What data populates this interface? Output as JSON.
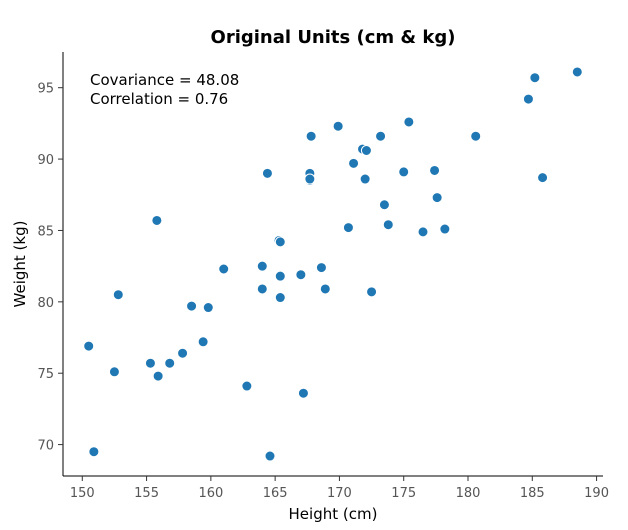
{
  "chart_data": {
    "type": "scatter",
    "title": "Original Units (cm & kg)",
    "xlabel": "Height (cm)",
    "ylabel": "Weight (kg)",
    "xlim": [
      148.5,
      190.5
    ],
    "ylim": [
      67.8,
      97.5
    ],
    "xticks": [
      150,
      155,
      160,
      165,
      170,
      175,
      180,
      185,
      190
    ],
    "yticks": [
      70,
      75,
      80,
      85,
      90,
      95
    ],
    "grid": false,
    "annotations": [
      "Covariance = 48.08",
      "Correlation = 0.76"
    ],
    "color": "#1f77b4",
    "x": [
      150.5,
      150.9,
      152.5,
      152.8,
      155.3,
      155.8,
      155.9,
      156.8,
      157.8,
      158.5,
      159.4,
      159.8,
      161.0,
      162.8,
      164.0,
      164.0,
      164.4,
      164.6,
      165.3,
      165.4,
      165.4,
      165.4,
      167.0,
      167.2,
      167.7,
      167.7,
      167.7,
      167.8,
      168.6,
      168.9,
      169.9,
      170.7,
      171.1,
      171.8,
      172.0,
      172.1,
      172.5,
      173.2,
      173.5,
      173.8,
      175.0,
      175.4,
      176.5,
      177.4,
      177.6,
      178.2,
      180.6,
      184.7,
      185.2,
      185.8,
      188.5
    ],
    "y": [
      76.9,
      69.5,
      75.1,
      80.5,
      75.7,
      85.7,
      74.8,
      75.7,
      76.4,
      79.7,
      77.2,
      79.6,
      82.3,
      74.1,
      82.5,
      80.9,
      89.0,
      69.2,
      84.3,
      84.2,
      81.8,
      80.3,
      81.9,
      73.6,
      89.0,
      88.5,
      88.6,
      91.6,
      82.4,
      80.9,
      92.3,
      85.2,
      89.7,
      90.7,
      88.6,
      90.6,
      80.7,
      91.6,
      86.8,
      85.4,
      89.1,
      92.6,
      84.9,
      89.2,
      87.3,
      85.1,
      91.6,
      94.2,
      95.7,
      88.7,
      96.1
    ]
  }
}
